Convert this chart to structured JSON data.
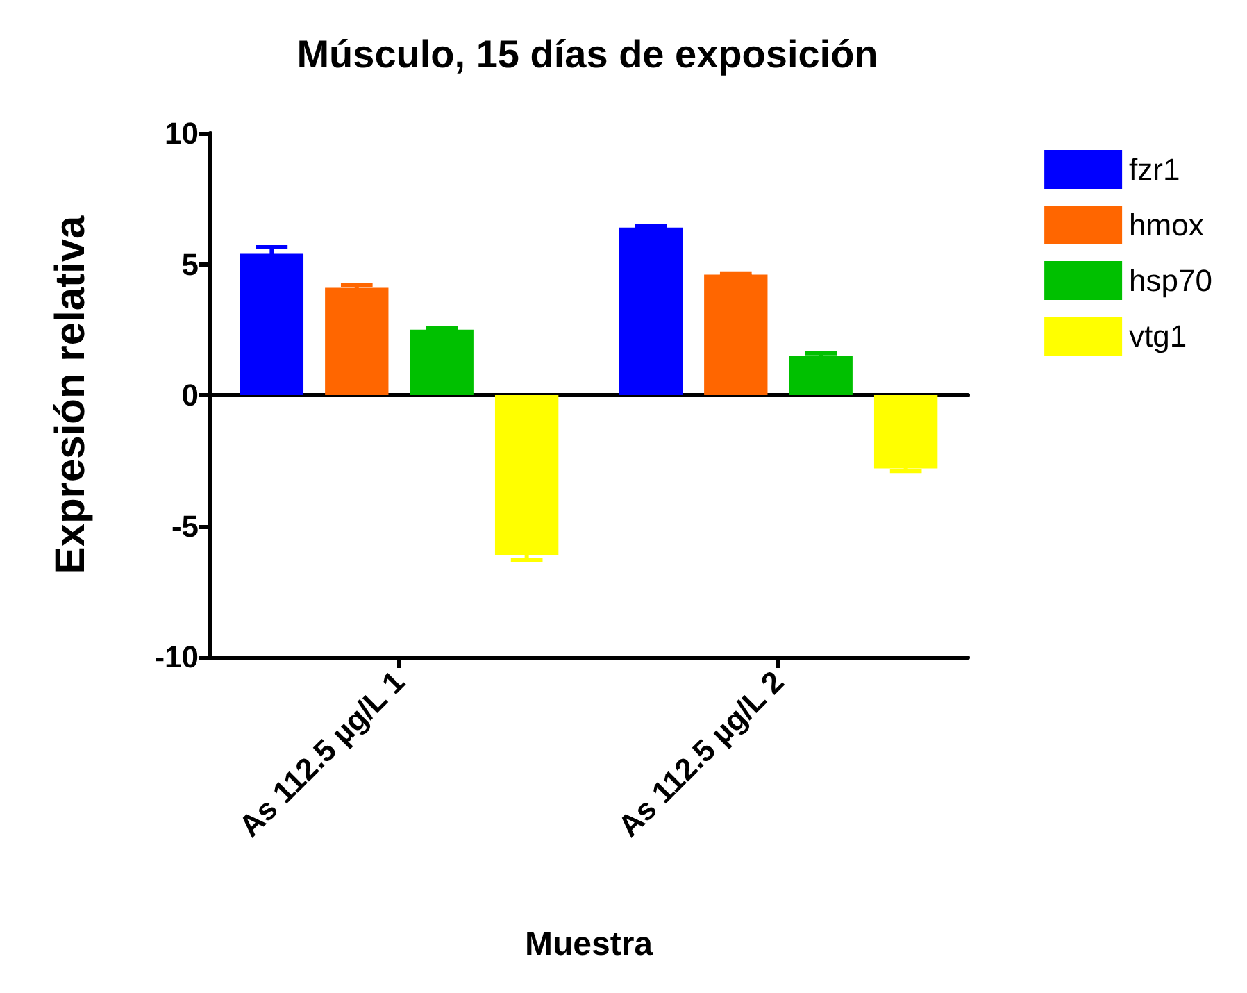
{
  "chart_data": {
    "type": "bar",
    "title": "Músculo, 15 días de exposición",
    "xlabel": "Muestra",
    "ylabel": "Expresión relativa",
    "categories": [
      "As 112.5 µg/L 1",
      "As 112.5 µg/L 2"
    ],
    "series": [
      {
        "name": "fzr1",
        "color": "#0000ff",
        "values": [
          5.4,
          6.4
        ],
        "errors": [
          0.25,
          0.05
        ]
      },
      {
        "name": "hmox",
        "color": "#ff6600",
        "values": [
          4.1,
          4.6
        ],
        "errors": [
          0.1,
          0.05
        ]
      },
      {
        "name": "hsp70",
        "color": "#00c000",
        "values": [
          2.5,
          1.5
        ],
        "errors": [
          0.05,
          0.1
        ]
      },
      {
        "name": "vtg1",
        "color": "#ffff00",
        "values": [
          -6.1,
          -2.8
        ],
        "errors": [
          0.2,
          0.1
        ]
      }
    ],
    "ylim": [
      -10,
      10
    ],
    "yticks": [
      -10,
      -5,
      0,
      5,
      10
    ],
    "legend": "top right"
  }
}
